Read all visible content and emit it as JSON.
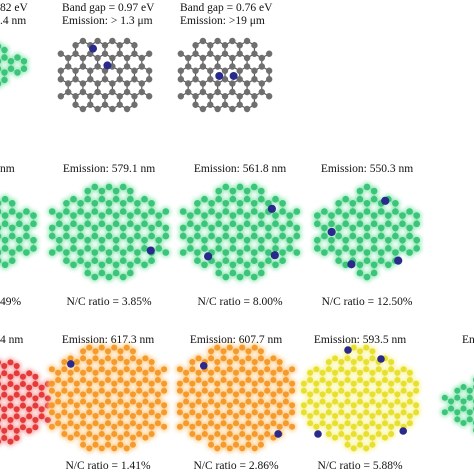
{
  "row1": {
    "partial": {
      "line1": "82 eV",
      "line2": ".4 nm"
    },
    "mol_b": {
      "line1": "Band gap = 0.97 eV",
      "line2": "Emission: > 1.3 μm"
    },
    "mol_c": {
      "line1": "Band gap = 0.76 eV",
      "line2": "Emission: >19 μm"
    }
  },
  "row2": {
    "left_partial_top": " nm",
    "left_partial_bottom": "49%",
    "panels": [
      {
        "emission": "Emission: 579.1 nm",
        "ratio": "N/C ratio = 3.85%"
      },
      {
        "emission": "Emission:  561.8 nm",
        "ratio": "N/C ratio = 8.00%"
      },
      {
        "emission": "Emission:  550.3 nm",
        "ratio": "N/C ratio = 12.50%"
      }
    ]
  },
  "row3": {
    "left_partial_top": "4 nm",
    "right_partial_top": "En",
    "panels": [
      {
        "emission": "Emission: 617.3 nm",
        "ratio": "N/C ratio = 1.41%"
      },
      {
        "emission": "Emission:  607.7 nm",
        "ratio": "N/C ratio = 2.86%"
      },
      {
        "emission": "Emission:  593.5 nm",
        "ratio": "N/C ratio = 5.88%"
      }
    ]
  },
  "colors": {
    "green": "#3cc47a",
    "green_glow": "#8ee8b4",
    "orange": "#f59a2c",
    "orange_glow": "#ffcc88",
    "yellow": "#e8e030",
    "yellow_glow": "#f8f49a",
    "red": "#e43a3a",
    "red_glow": "#f8a0a0",
    "carbon_gray": "#6f6f6f",
    "nitrogen": "#2a2a8c"
  }
}
